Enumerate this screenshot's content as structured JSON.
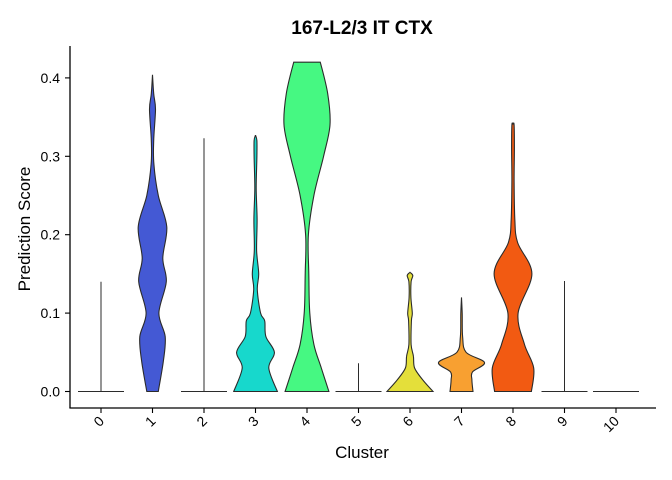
{
  "chart_data": {
    "type": "violin",
    "title": "167-L2/3 IT CTX",
    "xlabel": "Cluster",
    "ylabel": "Prediction Score",
    "ylim": [
      0,
      0.42
    ],
    "yticks": [
      0.0,
      0.1,
      0.2,
      0.3,
      0.4
    ],
    "ytick_labels": [
      "0.0",
      "0.1",
      "0.2",
      "0.3",
      "0.4"
    ],
    "grid": false,
    "legend": "none",
    "categories": [
      "0",
      "1",
      "2",
      "3",
      "4",
      "5",
      "6",
      "7",
      "8",
      "9",
      "10"
    ],
    "series": [
      {
        "cluster": "0",
        "color": "#4b4b4b",
        "max": 0.14,
        "density": [
          [
            0,
            1
          ]
        ]
      },
      {
        "cluster": "1",
        "color": "#4459d4",
        "max": 0.404,
        "density": [
          [
            0,
            0.25
          ],
          [
            0.04,
            0.48
          ],
          [
            0.07,
            0.55
          ],
          [
            0.1,
            0.28
          ],
          [
            0.14,
            0.6
          ],
          [
            0.17,
            0.45
          ],
          [
            0.21,
            0.62
          ],
          [
            0.25,
            0.25
          ],
          [
            0.29,
            0.06
          ],
          [
            0.32,
            0.05
          ],
          [
            0.36,
            0.13
          ],
          [
            0.38,
            0.05
          ],
          [
            0.404,
            0
          ]
        ]
      },
      {
        "cluster": "2",
        "color": "#4b4b4b",
        "max": 0.323,
        "density": [
          [
            0,
            1
          ]
        ]
      },
      {
        "cluster": "3",
        "color": "#17d8cc",
        "max": 0.327,
        "density": [
          [
            0,
            0.95
          ],
          [
            0.03,
            0.58
          ],
          [
            0.05,
            0.82
          ],
          [
            0.07,
            0.45
          ],
          [
            0.09,
            0.4
          ],
          [
            0.1,
            0.22
          ],
          [
            0.13,
            0.08
          ],
          [
            0.15,
            0.14
          ],
          [
            0.18,
            0.05
          ],
          [
            0.22,
            0.07
          ],
          [
            0.26,
            0.03
          ],
          [
            0.3,
            0.06
          ],
          [
            0.32,
            0.06
          ],
          [
            0.327,
            0
          ]
        ]
      },
      {
        "cluster": "4",
        "color": "#46f882",
        "max": 0.42,
        "density": [
          [
            0,
            0.95
          ],
          [
            0.03,
            0.62
          ],
          [
            0.06,
            0.3
          ],
          [
            0.1,
            0.12
          ],
          [
            0.15,
            0.08
          ],
          [
            0.2,
            0.06
          ],
          [
            0.25,
            0.3
          ],
          [
            0.3,
            0.72
          ],
          [
            0.34,
            1.0
          ],
          [
            0.38,
            0.9
          ],
          [
            0.42,
            0.58
          ]
        ]
      },
      {
        "cluster": "5",
        "color": "#4b4b4b",
        "max": 0.036,
        "density": [
          [
            0,
            1
          ]
        ]
      },
      {
        "cluster": "6",
        "color": "#e4df3a",
        "max": 0.152,
        "density": [
          [
            0,
            1
          ],
          [
            0.015,
            0.55
          ],
          [
            0.03,
            0.2
          ],
          [
            0.045,
            0.15
          ],
          [
            0.06,
            0.05
          ],
          [
            0.09,
            0.06
          ],
          [
            0.1,
            0.1
          ],
          [
            0.12,
            0.04
          ],
          [
            0.14,
            0.05
          ],
          [
            0.148,
            0.12
          ],
          [
            0.152,
            0
          ]
        ]
      },
      {
        "cluster": "7",
        "color": "#f8a031",
        "max": 0.12,
        "density": [
          [
            0,
            0.5
          ],
          [
            0.015,
            0.45
          ],
          [
            0.025,
            0.48
          ],
          [
            0.037,
            1.0
          ],
          [
            0.05,
            0.2
          ],
          [
            0.07,
            0.05
          ],
          [
            0.1,
            0.03
          ],
          [
            0.12,
            0
          ]
        ]
      },
      {
        "cluster": "8",
        "color": "#f25a12",
        "max": 0.341,
        "density": [
          [
            0,
            0.8
          ],
          [
            0.03,
            0.9
          ],
          [
            0.06,
            0.5
          ],
          [
            0.1,
            0.22
          ],
          [
            0.15,
            0.82
          ],
          [
            0.19,
            0.2
          ],
          [
            0.22,
            0.08
          ],
          [
            0.27,
            0.05
          ],
          [
            0.31,
            0.06
          ],
          [
            0.34,
            0.05
          ],
          [
            0.341,
            0
          ]
        ]
      },
      {
        "cluster": "9",
        "color": "#4b4b4b",
        "max": 0.141,
        "density": [
          [
            0,
            1
          ]
        ]
      },
      {
        "cluster": "10",
        "color": "#4b4b4b",
        "max": 0.0,
        "density": [
          [
            0,
            1
          ]
        ]
      }
    ]
  }
}
